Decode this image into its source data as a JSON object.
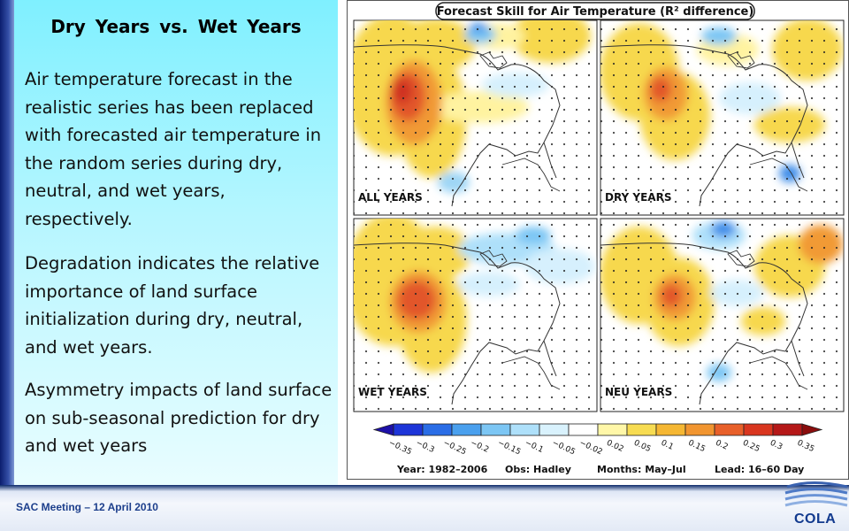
{
  "slide": {
    "title": "Dry  Years vs.  Wet Years",
    "paragraphs": [
      "Air temperature forecast in the realistic series has been replaced with forecasted air temperature in the random series during dry, neutral, and wet years, respectively.",
      "Degradation indicates the relative importance of land surface initialization during dry, neutral, and wet years.",
      "Asymmetry impacts of land surface on sub-seasonal prediction for dry and wet years"
    ],
    "footer": "SAC Meeting – 12 April 2010",
    "logo": "COLA"
  },
  "figure": {
    "title": "Forecast Skill for Air Temperature (R² difference)",
    "panels": [
      "ALL YEARS",
      "DRY YEARS",
      "WET YEARS",
      "NEU YEARS"
    ],
    "colorbar_ticks": [
      "−0.35",
      "−0.3",
      "−0.25",
      "−0.2",
      "−0.15",
      "−0.1",
      "−0.05",
      "−0.02",
      "0.02",
      "0.05",
      "0.1",
      "0.15",
      "0.2",
      "0.25",
      "0.3",
      "0.35"
    ],
    "colorbar_colors": [
      "#1d10a8",
      "#1d35d8",
      "#2a6de6",
      "#4aa0ee",
      "#7cc6f4",
      "#aee0fa",
      "#d9f2fd",
      "#ffffff",
      "#fff7a8",
      "#f7dc52",
      "#f5b733",
      "#f19530",
      "#e8602a",
      "#d9361f",
      "#b51818",
      "#8a0d0d"
    ],
    "caption": {
      "year": "Year: 1982–2006",
      "obs": "Obs: Hadley",
      "months": "Months: May–Jul",
      "lead": "Lead: 16–60 Day"
    }
  }
}
